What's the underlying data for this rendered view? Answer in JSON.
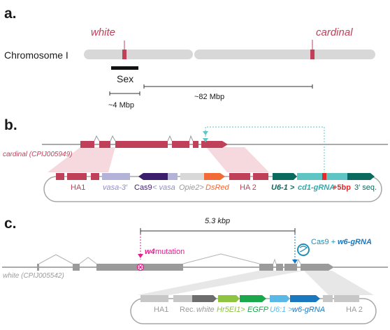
{
  "panel_a": {
    "label": "a.",
    "chromosome_label": "Chromosome I",
    "white_label": "white",
    "cardinal_label": "cardinal",
    "sex_label": "Sex",
    "dist_4": "~4 Mbp",
    "dist_82": "~82 Mbp"
  },
  "panel_b": {
    "label": "b.",
    "gene_label": "cardinal (CPIJ005949)",
    "ha1": "HA1",
    "vasa3": "vasa-3′",
    "cas9": "Cas9",
    "vasa5": "< vasa",
    "opie2": "Opie2>",
    "dsred": "DsRed",
    "ha2": "HA 2",
    "u61": "U6-1 >",
    "cd1grna": "cd1-gRNA",
    "plus5bp": "+5bp",
    "seq3": "3′ seq."
  },
  "panel_c": {
    "label": "c.",
    "gene_label": "white (CPIJ005542)",
    "dist": "5.3 kbp",
    "w4_prefix": "w4",
    "w4_suffix": " mutation",
    "cas9_prefix": "Cas9 + ",
    "cas9_grna": "w6-gRNA",
    "ha1": "HA1",
    "rec_white_prefix": "Rec. ",
    "rec_white_suffix": "white",
    "hr5ei1": "Hr5EI1>",
    "egfp": "EGFP",
    "u61": "U6:1 >",
    "w6grna": "w6-gRNA",
    "ha2": "HA 2"
  },
  "colors": {
    "chromosome": "#d8d8d8",
    "crimson": "#c0405a",
    "pink_shade": "#f1c9d1",
    "purple": "#3d1e6d",
    "lavender": "#b3b2d9",
    "orange": "#f26a35",
    "teal_dark": "#0b6a5e",
    "teal_light": "#5ec4c4",
    "red_mark": "#e22a2a",
    "gene_gray": "#9b9b9b",
    "green_dark": "#1aa84a",
    "green_light": "#8ec43f",
    "blue_light": "#5ab8e6",
    "blue_dark": "#1a78bf",
    "magenta": "#e0208c",
    "cas9_blue": "#1f8fb5"
  }
}
